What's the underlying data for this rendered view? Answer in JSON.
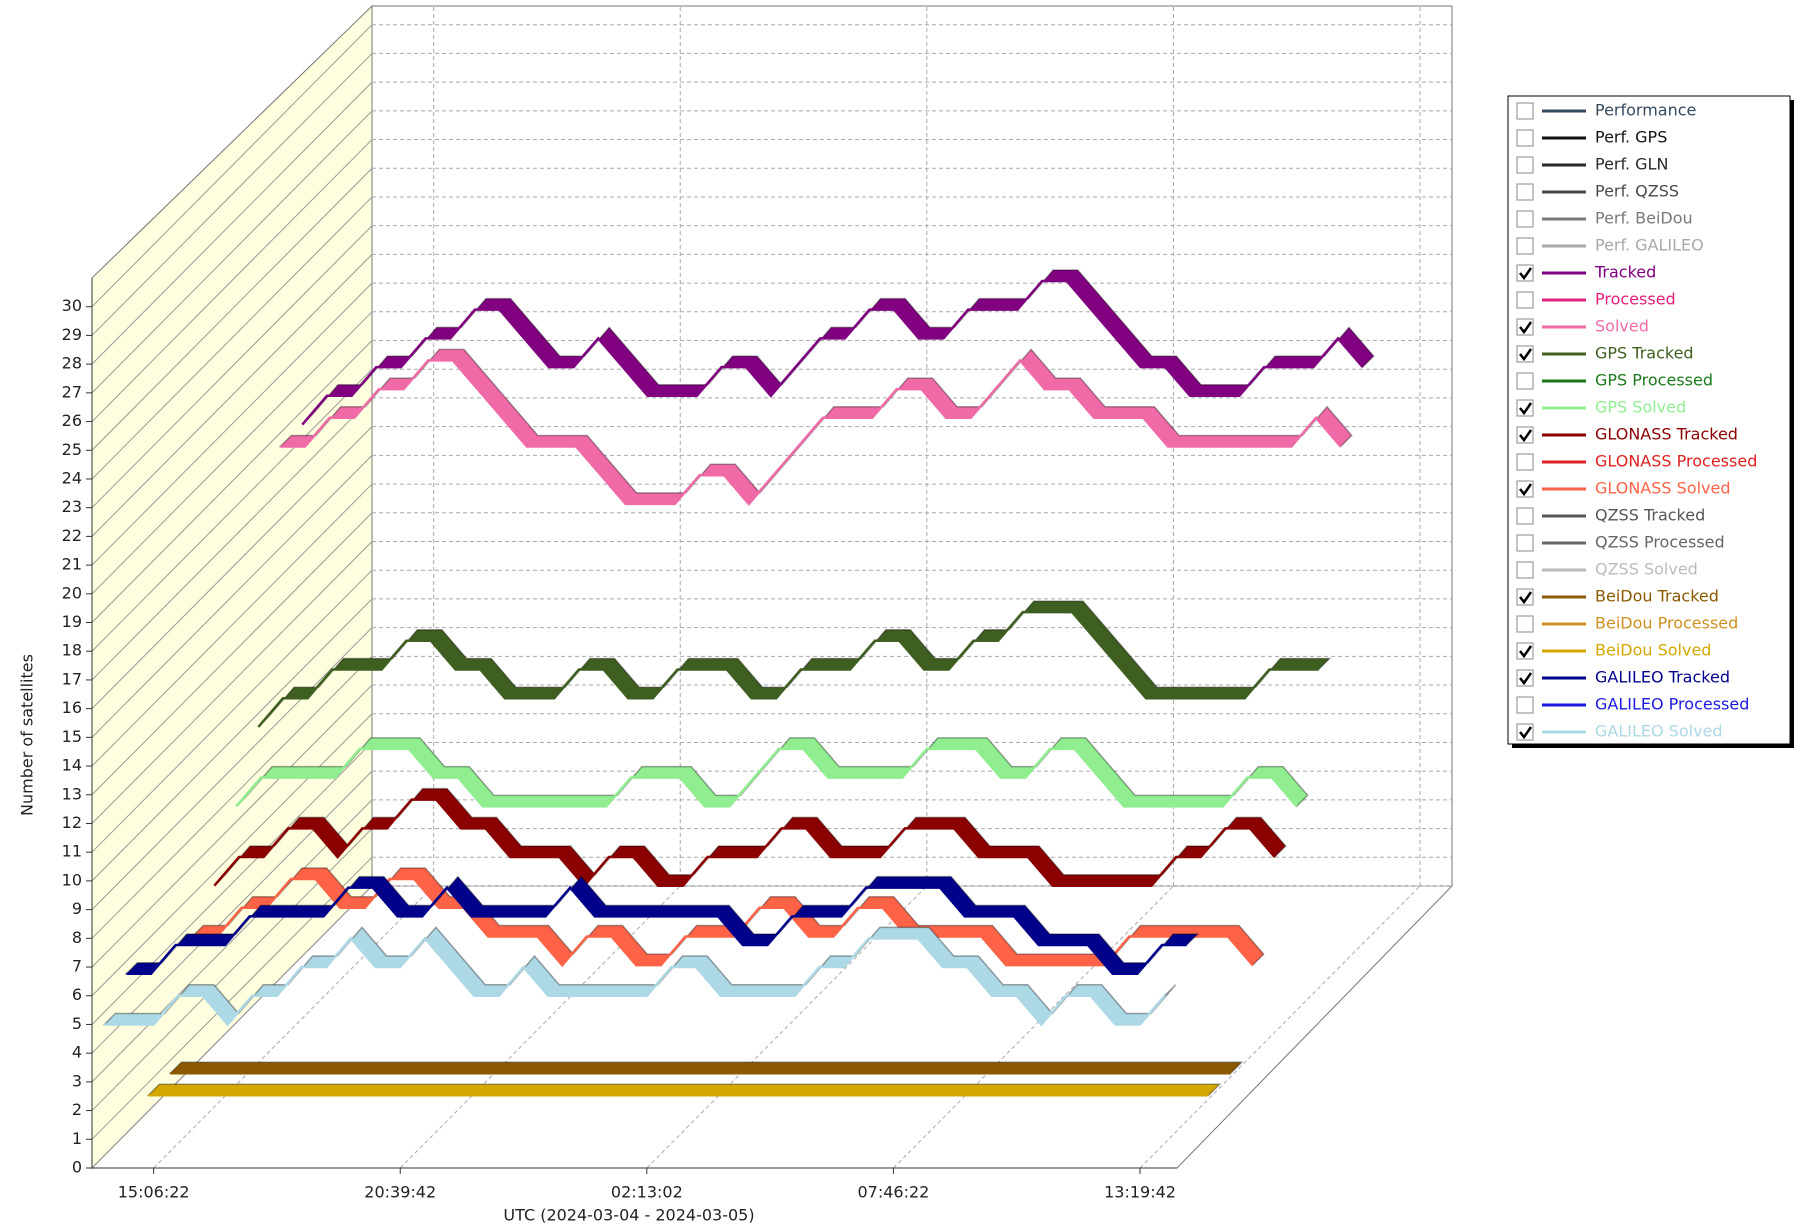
{
  "chart_data": {
    "type": "ribbon3d",
    "x_label": "UTC (2024-03-04 - 2024-03-05)",
    "y_label": "Number of satellites",
    "categories": [
      null,
      null,
      "15:06:22",
      null,
      null,
      null,
      null,
      null,
      null,
      null,
      null,
      null,
      "20:39:42",
      null,
      null,
      null,
      null,
      null,
      null,
      null,
      null,
      null,
      "02:13:02",
      null,
      null,
      null,
      null,
      null,
      null,
      null,
      null,
      null,
      "07:46:22",
      null,
      null,
      null,
      null,
      null,
      null,
      null,
      null,
      null,
      "13:19:42",
      null
    ],
    "ylim": [
      0,
      31
    ],
    "yticks": [
      0,
      1,
      2,
      3,
      4,
      5,
      6,
      7,
      8,
      9,
      10,
      11,
      12,
      13,
      14,
      15,
      16,
      17,
      18,
      19,
      20,
      21,
      22,
      23,
      24,
      25,
      26,
      27,
      28,
      29,
      30
    ],
    "grid": true,
    "series": [
      {
        "name": "Performance",
        "color": "#34495e",
        "checked": false
      },
      {
        "name": "Perf. GPS",
        "color": "#111111",
        "checked": false
      },
      {
        "name": "Perf. GLN",
        "color": "#2a2a2a",
        "checked": false
      },
      {
        "name": "Perf. QZSS",
        "color": "#4a4a4a",
        "checked": false
      },
      {
        "name": "Perf. BeiDou",
        "color": "#7a7a7a",
        "checked": false
      },
      {
        "name": "Perf. GALILEO",
        "color": "#a8a8a8",
        "checked": false
      },
      {
        "name": "Tracked",
        "color": "#800080",
        "checked": true,
        "values": [
          19,
          20,
          20,
          21,
          21,
          22,
          22,
          23,
          23,
          22,
          21,
          21,
          22,
          21,
          20,
          20,
          20,
          21,
          21,
          20,
          21,
          22,
          22,
          23,
          23,
          22,
          22,
          23,
          23,
          23,
          24,
          24,
          23,
          22,
          21,
          21,
          20,
          20,
          20,
          21,
          21,
          21,
          22,
          21
        ]
      },
      {
        "name": "Processed",
        "color": "#e0207a",
        "checked": false
      },
      {
        "name": "Solved",
        "color": "#f06aa8",
        "checked": true,
        "values": [
          19,
          19,
          20,
          20,
          21,
          21,
          22,
          22,
          21,
          20,
          19,
          19,
          19,
          18,
          17,
          17,
          17,
          18,
          18,
          17,
          18,
          19,
          20,
          20,
          20,
          21,
          21,
          20,
          20,
          21,
          22,
          21,
          21,
          20,
          20,
          20,
          19,
          19,
          19,
          19,
          19,
          19,
          20,
          19
        ]
      },
      {
        "name": "GPS Tracked",
        "color": "#3f5f20",
        "checked": true,
        "values": [
          10,
          11,
          11,
          12,
          12,
          12,
          13,
          13,
          12,
          12,
          11,
          11,
          11,
          12,
          12,
          11,
          11,
          12,
          12,
          12,
          11,
          11,
          12,
          12,
          12,
          13,
          13,
          12,
          12,
          13,
          13,
          14,
          14,
          14,
          13,
          12,
          11,
          11,
          11,
          11,
          11,
          12,
          12,
          12
        ]
      },
      {
        "name": "GPS Processed",
        "color": "#1a7a1a",
        "checked": false
      },
      {
        "name": "GPS Solved",
        "color": "#90ee90",
        "checked": true,
        "values": [
          8,
          9,
          9,
          9,
          9,
          10,
          10,
          10,
          9,
          9,
          8,
          8,
          8,
          8,
          8,
          8,
          9,
          9,
          9,
          8,
          8,
          9,
          10,
          10,
          9,
          9,
          9,
          9,
          10,
          10,
          10,
          9,
          9,
          10,
          10,
          9,
          8,
          8,
          8,
          8,
          8,
          9,
          9,
          8
        ]
      },
      {
        "name": "GLONASS Tracked",
        "color": "#8b0000",
        "checked": true,
        "values": [
          6,
          7,
          7,
          8,
          8,
          7,
          8,
          8,
          9,
          9,
          8,
          8,
          7,
          7,
          7,
          6,
          7,
          7,
          6,
          6,
          7,
          7,
          7,
          8,
          8,
          7,
          7,
          7,
          8,
          8,
          8,
          7,
          7,
          7,
          6,
          6,
          6,
          6,
          6,
          7,
          7,
          8,
          8,
          7
        ]
      },
      {
        "name": "GLONASS Processed",
        "color": "#e02020",
        "checked": false
      },
      {
        "name": "GLONASS Solved",
        "color": "#ff6347",
        "checked": true,
        "values": [
          5,
          5,
          6,
          6,
          7,
          7,
          6,
          6,
          7,
          7,
          6,
          6,
          5,
          5,
          5,
          4,
          5,
          5,
          4,
          4,
          5,
          5,
          5,
          6,
          6,
          5,
          5,
          6,
          6,
          5,
          5,
          5,
          5,
          4,
          4,
          4,
          4,
          4,
          5,
          5,
          5,
          5,
          5,
          4
        ]
      },
      {
        "name": "QZSS Tracked",
        "color": "#555555",
        "checked": false
      },
      {
        "name": "QZSS Processed",
        "color": "#666666",
        "checked": false
      },
      {
        "name": "QZSS Solved",
        "color": "#bbbbbb",
        "checked": false
      },
      {
        "name": "BeiDou Tracked",
        "color": "#8b5a00",
        "checked": true,
        "values": [
          1,
          1,
          1,
          1,
          1,
          1,
          1,
          1,
          1,
          1,
          1,
          1,
          1,
          1,
          1,
          1,
          1,
          1,
          1,
          1,
          1,
          1,
          1,
          1,
          1,
          1,
          1,
          1,
          1,
          1,
          1,
          1,
          1,
          1,
          1,
          1,
          1,
          1,
          1,
          1,
          1,
          1,
          1,
          1
        ]
      },
      {
        "name": "BeiDou Processed",
        "color": "#d09020",
        "checked": false
      },
      {
        "name": "BeiDou Solved",
        "color": "#d4a800",
        "checked": true,
        "values": [
          1,
          1,
          1,
          1,
          1,
          1,
          1,
          1,
          1,
          1,
          1,
          1,
          1,
          1,
          1,
          1,
          1,
          1,
          1,
          1,
          1,
          1,
          1,
          1,
          1,
          1,
          1,
          1,
          1,
          1,
          1,
          1,
          1,
          1,
          1,
          1,
          1,
          1,
          1,
          1,
          1,
          1,
          1,
          1
        ]
      },
      {
        "name": "GALILEO Tracked",
        "color": "#00008b",
        "checked": true,
        "values": [
          6,
          6,
          7,
          7,
          7,
          8,
          8,
          8,
          8,
          9,
          9,
          8,
          8,
          9,
          8,
          8,
          8,
          8,
          9,
          8,
          8,
          8,
          8,
          8,
          8,
          7,
          7,
          8,
          8,
          8,
          9,
          9,
          9,
          9,
          8,
          8,
          8,
          7,
          7,
          7,
          6,
          6,
          7,
          7
        ]
      },
      {
        "name": "GALILEO Processed",
        "color": "#1a1ae0",
        "checked": false
      },
      {
        "name": "GALILEO Solved",
        "color": "#add8e6",
        "checked": true,
        "values": [
          5,
          5,
          5,
          6,
          6,
          5,
          6,
          6,
          7,
          7,
          8,
          7,
          7,
          8,
          7,
          6,
          6,
          7,
          6,
          6,
          6,
          6,
          6,
          7,
          7,
          6,
          6,
          6,
          6,
          7,
          7,
          8,
          8,
          8,
          7,
          7,
          6,
          6,
          5,
          6,
          6,
          5,
          5,
          6
        ]
      }
    ]
  }
}
